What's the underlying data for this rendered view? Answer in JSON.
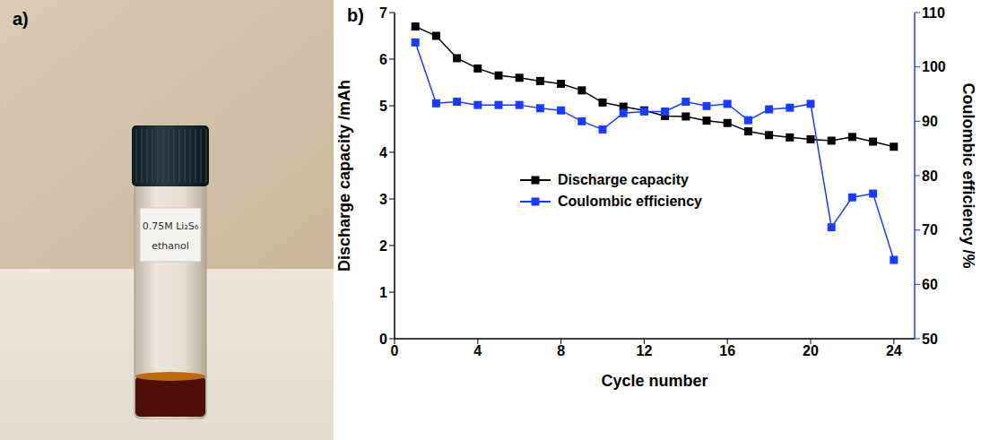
{
  "panels": {
    "a": {
      "letter": "a)",
      "vial_label": [
        "0.75M Li₂S₆",
        "ethanol"
      ]
    }
  },
  "chart_data": {
    "type": "line",
    "panel_label": "b)",
    "xlabel": "Cycle number",
    "ylabel": "Discharge capacity /mAh",
    "y2label": "Coulombic efficiency /%",
    "x": [
      1,
      2,
      3,
      4,
      5,
      6,
      7,
      8,
      9,
      10,
      11,
      12,
      13,
      14,
      15,
      16,
      17,
      18,
      19,
      20,
      21,
      22,
      23,
      24
    ],
    "xlim": [
      0,
      25
    ],
    "xticks": [
      0,
      4,
      8,
      12,
      16,
      20,
      24
    ],
    "ylim": [
      0,
      7
    ],
    "yticks": [
      0,
      1,
      2,
      3,
      4,
      5,
      6,
      7
    ],
    "y2lim": [
      50,
      110
    ],
    "y2ticks": [
      50,
      60,
      70,
      80,
      90,
      100,
      110
    ],
    "grid": false,
    "legend": "left",
    "series": [
      {
        "name": "Discharge capacity",
        "color": "#000000",
        "marker": "square",
        "values": [
          6.7,
          6.5,
          6.02,
          5.8,
          5.65,
          5.6,
          5.53,
          5.47,
          5.33,
          5.07,
          4.98,
          4.9,
          4.78,
          4.77,
          4.68,
          4.63,
          4.45,
          4.37,
          4.32,
          4.28,
          4.25,
          4.33,
          4.23,
          4.12
        ]
      },
      {
        "name": "Coulombic efficiency",
        "color": "#1a3cff",
        "marker": "square",
        "axis": "y2",
        "values": [
          104.5,
          93.3,
          93.6,
          93.0,
          93.0,
          93.0,
          92.4,
          92.0,
          90.0,
          88.5,
          91.5,
          91.8,
          91.8,
          93.6,
          92.8,
          93.2,
          90.2,
          92.2,
          92.5,
          93.2,
          70.5,
          76.0,
          76.7,
          64.5
        ]
      }
    ]
  }
}
